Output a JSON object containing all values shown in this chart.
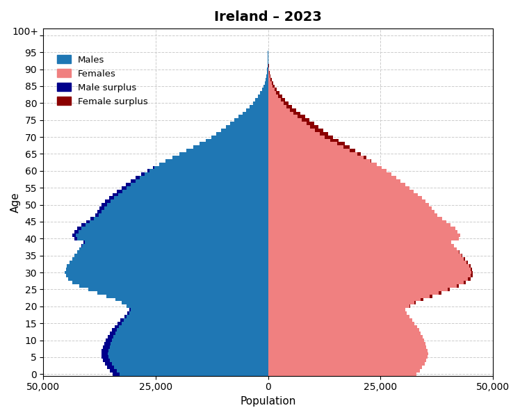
{
  "title": "Ireland – 2023",
  "xlabel": "Population",
  "ylabel": "Age",
  "male_color": "#1f77b4",
  "female_color": "#f08080",
  "male_surplus_color": "#00008b",
  "female_surplus_color": "#8b0000",
  "xlim": 50000,
  "xticks": [
    -50000,
    -25000,
    0,
    25000,
    50000
  ],
  "xticklabels": [
    "50,000",
    "25,000",
    "0",
    "25,000",
    "50,000"
  ],
  "background_color": "#ffffff",
  "grid_color": "#cccccc",
  "ages": [
    0,
    1,
    2,
    3,
    4,
    5,
    6,
    7,
    8,
    9,
    10,
    11,
    12,
    13,
    14,
    15,
    16,
    17,
    18,
    19,
    20,
    21,
    22,
    23,
    24,
    25,
    26,
    27,
    28,
    29,
    30,
    31,
    32,
    33,
    34,
    35,
    36,
    37,
    38,
    39,
    40,
    41,
    42,
    43,
    44,
    45,
    46,
    47,
    48,
    49,
    50,
    51,
    52,
    53,
    54,
    55,
    56,
    57,
    58,
    59,
    60,
    61,
    62,
    63,
    64,
    65,
    66,
    67,
    68,
    69,
    70,
    71,
    72,
    73,
    74,
    75,
    76,
    77,
    78,
    79,
    80,
    81,
    82,
    83,
    84,
    85,
    86,
    87,
    88,
    89,
    90,
    91,
    92,
    93,
    94,
    95,
    96,
    97,
    98,
    99,
    100
  ],
  "males": [
    34500,
    35200,
    35800,
    36300,
    36700,
    37000,
    37100,
    37000,
    36700,
    36400,
    36100,
    35700,
    35200,
    34700,
    34100,
    33500,
    32800,
    32000,
    31300,
    30900,
    31500,
    32500,
    34000,
    36000,
    38000,
    40000,
    42000,
    43500,
    44500,
    45000,
    45200,
    45000,
    44700,
    44200,
    43500,
    43000,
    42500,
    42000,
    41500,
    41000,
    43000,
    43500,
    43000,
    42500,
    41500,
    40500,
    39500,
    38500,
    38000,
    37500,
    37000,
    36200,
    35400,
    34500,
    33600,
    32600,
    31600,
    30500,
    29400,
    28200,
    26900,
    25600,
    24200,
    22800,
    21300,
    19800,
    18200,
    16700,
    15300,
    13900,
    12600,
    11500,
    10400,
    9400,
    8500,
    7500,
    6600,
    5700,
    4900,
    4100,
    3400,
    2800,
    2200,
    1800,
    1400,
    1050,
    780,
    570,
    410,
    280,
    185,
    120,
    75,
    45,
    27,
    16,
    9,
    5,
    3,
    2,
    1
  ],
  "females": [
    33000,
    33700,
    34300,
    34800,
    35200,
    35500,
    35600,
    35500,
    35200,
    35000,
    34700,
    34400,
    34000,
    33600,
    33200,
    32600,
    32100,
    31400,
    30900,
    30600,
    31600,
    32800,
    34500,
    36500,
    38500,
    40500,
    42500,
    44000,
    45000,
    45500,
    45500,
    45300,
    45000,
    44500,
    43800,
    43200,
    42600,
    42000,
    41400,
    40800,
    42500,
    42800,
    42200,
    41600,
    40600,
    39700,
    38700,
    37700,
    37000,
    36400,
    35800,
    35000,
    34200,
    33300,
    32400,
    31400,
    30500,
    29500,
    28500,
    27500,
    26400,
    25300,
    24200,
    23000,
    21800,
    20600,
    19400,
    18200,
    17000,
    15700,
    14500,
    13400,
    12300,
    11200,
    10200,
    9200,
    8200,
    7200,
    6300,
    5400,
    4600,
    3800,
    3100,
    2500,
    1950,
    1500,
    1120,
    830,
    600,
    420,
    285,
    185,
    115,
    70,
    42,
    25,
    15,
    9,
    5,
    3,
    2
  ]
}
